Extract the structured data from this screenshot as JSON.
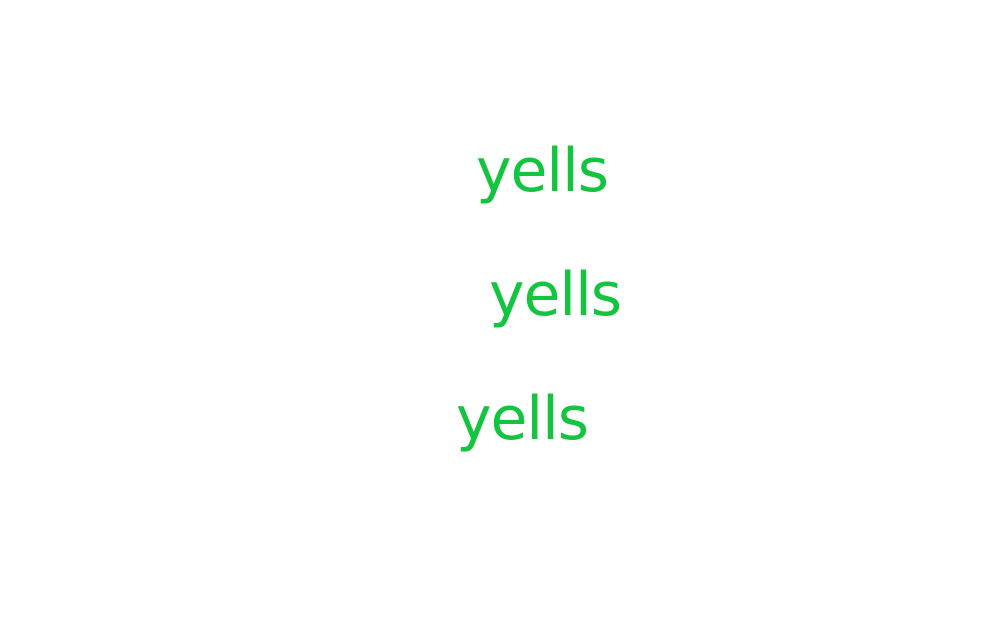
{
  "accent_color": "#13c43f",
  "words": [
    {
      "text": "yells"
    },
    {
      "text": "yells"
    },
    {
      "text": "yells"
    }
  ]
}
